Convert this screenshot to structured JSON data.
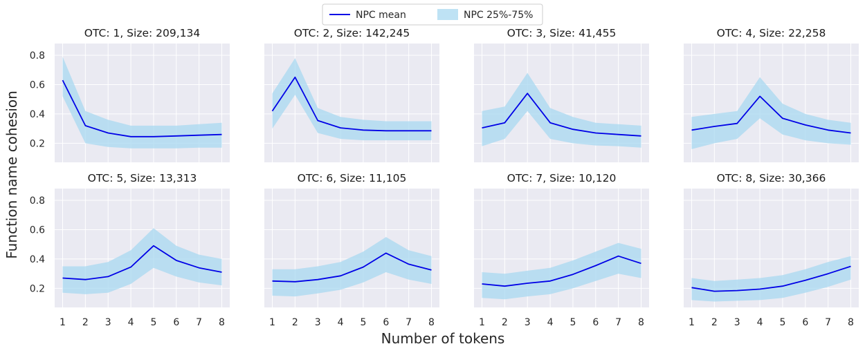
{
  "chart_data": {
    "type": "line",
    "xlabel": "Number of tokens",
    "ylabel": "Function name cohesion",
    "x": [
      1,
      2,
      3,
      4,
      5,
      6,
      7,
      8
    ],
    "x_ticks": [
      "1",
      "2",
      "3",
      "4",
      "5",
      "6",
      "7",
      "8"
    ],
    "y_ticks": [
      "0.2",
      "0.4",
      "0.6",
      "0.8"
    ],
    "y_tick_values": [
      0.2,
      0.4,
      0.6,
      0.8
    ],
    "ylim": [
      0.07,
      0.88
    ],
    "xlim": [
      0.65,
      8.35
    ],
    "grid": true,
    "legend": {
      "placement": "top-center",
      "entries": [
        "NPC mean",
        "NPC 25%-75%"
      ]
    },
    "colors": {
      "mean": "#0000e6",
      "band": "#a8d8f0",
      "panel_bg": "#eaeaf2",
      "grid": "#ffffff"
    },
    "panels": [
      {
        "title": "OTC: 1, Size: 209,134",
        "mean": [
          0.63,
          0.32,
          0.27,
          0.245,
          0.245,
          0.25,
          0.255,
          0.26
        ],
        "q25": [
          0.52,
          0.2,
          0.175,
          0.165,
          0.165,
          0.165,
          0.17,
          0.17
        ],
        "q75": [
          0.79,
          0.42,
          0.36,
          0.32,
          0.32,
          0.32,
          0.33,
          0.34
        ]
      },
      {
        "title": "OTC: 2, Size: 142,245",
        "mean": [
          0.42,
          0.65,
          0.355,
          0.305,
          0.29,
          0.285,
          0.285,
          0.285
        ],
        "q25": [
          0.3,
          0.53,
          0.27,
          0.23,
          0.22,
          0.22,
          0.22,
          0.22
        ],
        "q75": [
          0.54,
          0.78,
          0.44,
          0.38,
          0.36,
          0.35,
          0.35,
          0.35
        ]
      },
      {
        "title": "OTC: 3, Size: 41,455",
        "mean": [
          0.305,
          0.34,
          0.54,
          0.34,
          0.295,
          0.27,
          0.26,
          0.25
        ],
        "q25": [
          0.18,
          0.23,
          0.42,
          0.23,
          0.2,
          0.185,
          0.18,
          0.17
        ],
        "q75": [
          0.42,
          0.45,
          0.68,
          0.44,
          0.38,
          0.34,
          0.33,
          0.32
        ]
      },
      {
        "title": "OTC: 4, Size: 22,258",
        "mean": [
          0.29,
          0.315,
          0.335,
          0.52,
          0.37,
          0.325,
          0.29,
          0.27
        ],
        "q25": [
          0.16,
          0.2,
          0.23,
          0.37,
          0.26,
          0.22,
          0.2,
          0.19
        ],
        "q75": [
          0.38,
          0.4,
          0.42,
          0.65,
          0.47,
          0.4,
          0.36,
          0.34
        ]
      },
      {
        "title": "OTC: 5, Size: 13,313",
        "mean": [
          0.27,
          0.26,
          0.28,
          0.345,
          0.49,
          0.39,
          0.34,
          0.31
        ],
        "q25": [
          0.17,
          0.16,
          0.17,
          0.23,
          0.34,
          0.28,
          0.24,
          0.22
        ],
        "q75": [
          0.35,
          0.35,
          0.38,
          0.46,
          0.61,
          0.49,
          0.43,
          0.4
        ]
      },
      {
        "title": "OTC: 6, Size: 11,105",
        "mean": [
          0.25,
          0.245,
          0.26,
          0.285,
          0.345,
          0.44,
          0.365,
          0.325
        ],
        "q25": [
          0.15,
          0.145,
          0.165,
          0.19,
          0.24,
          0.31,
          0.26,
          0.23
        ],
        "q75": [
          0.33,
          0.33,
          0.35,
          0.38,
          0.45,
          0.55,
          0.46,
          0.42
        ]
      },
      {
        "title": "OTC: 7, Size: 10,120",
        "mean": [
          0.23,
          0.215,
          0.235,
          0.25,
          0.295,
          0.355,
          0.42,
          0.37
        ],
        "q25": [
          0.135,
          0.125,
          0.145,
          0.16,
          0.2,
          0.25,
          0.3,
          0.27
        ],
        "q75": [
          0.31,
          0.3,
          0.32,
          0.34,
          0.39,
          0.45,
          0.51,
          0.47
        ]
      },
      {
        "title": "OTC: 8, Size: 30,366",
        "mean": [
          0.205,
          0.18,
          0.185,
          0.195,
          0.215,
          0.255,
          0.3,
          0.35
        ],
        "q25": [
          0.12,
          0.11,
          0.115,
          0.12,
          0.135,
          0.17,
          0.21,
          0.26
        ],
        "q75": [
          0.27,
          0.25,
          0.26,
          0.27,
          0.29,
          0.33,
          0.38,
          0.42
        ]
      }
    ]
  }
}
